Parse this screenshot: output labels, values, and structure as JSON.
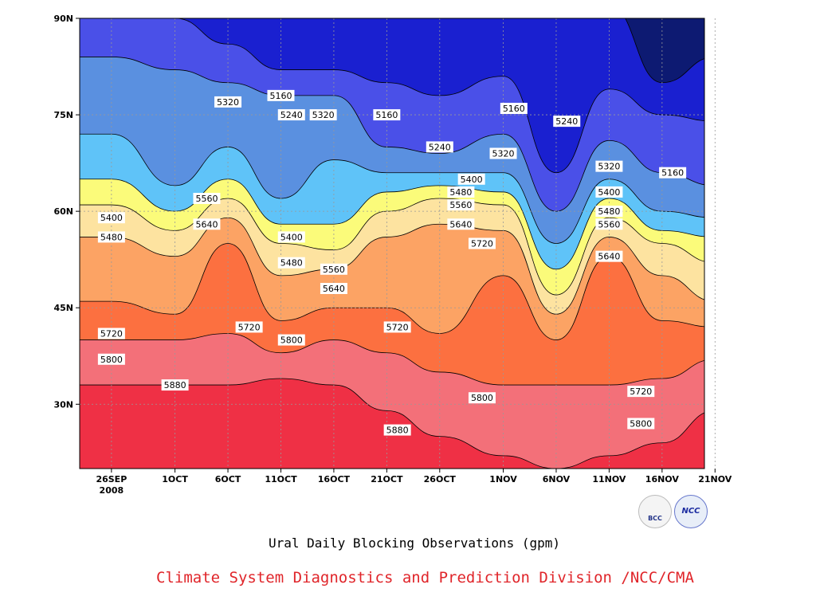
{
  "chart_data": {
    "type": "contour",
    "title": "",
    "xlabel": "",
    "ylabel": "",
    "x_ticks": [
      "26SEP",
      "1OCT",
      "6OCT",
      "11OCT",
      "16OCT",
      "21OCT",
      "26OCT",
      "1NOV",
      "6NOV",
      "11NOV",
      "16NOV",
      "21NOV"
    ],
    "x_year_label": "2008",
    "y_ticks": [
      "30N",
      "45N",
      "60N",
      "75N",
      "90N"
    ],
    "ylim": [
      20,
      90
    ],
    "contour_levels": [
      5160,
      5240,
      5320,
      5400,
      5480,
      5560,
      5640,
      5720,
      5800,
      5880
    ],
    "contour_labels": [
      {
        "value": "5160",
        "date": "11OCT",
        "lat": 78
      },
      {
        "value": "5240",
        "date": "12OCT",
        "lat": 75
      },
      {
        "value": "5320",
        "date": "6OCT",
        "lat": 77
      },
      {
        "value": "5320",
        "date": "15OCT",
        "lat": 75
      },
      {
        "value": "5160",
        "date": "21OCT",
        "lat": 75
      },
      {
        "value": "5160",
        "date": "2NOV",
        "lat": 76
      },
      {
        "value": "5240",
        "date": "7NOV",
        "lat": 74
      },
      {
        "value": "5240",
        "date": "26OCT",
        "lat": 70
      },
      {
        "value": "5320",
        "date": "1NOV",
        "lat": 69
      },
      {
        "value": "5320",
        "date": "11NOV",
        "lat": 67
      },
      {
        "value": "5160",
        "date": "17NOV",
        "lat": 66
      },
      {
        "value": "5400",
        "date": "29OCT",
        "lat": 65
      },
      {
        "value": "5480",
        "date": "28OCT",
        "lat": 63
      },
      {
        "value": "5560",
        "date": "28OCT",
        "lat": 61
      },
      {
        "value": "5640",
        "date": "28OCT",
        "lat": 58
      },
      {
        "value": "5400",
        "date": "11NOV",
        "lat": 63
      },
      {
        "value": "5480",
        "date": "11NOV",
        "lat": 60
      },
      {
        "value": "5560",
        "date": "11NOV",
        "lat": 58
      },
      {
        "value": "5640",
        "date": "11NOV",
        "lat": 53
      },
      {
        "value": "5560",
        "date": "4OCT",
        "lat": 62
      },
      {
        "value": "5640",
        "date": "4OCT",
        "lat": 58
      },
      {
        "value": "5400",
        "date": "26SEP",
        "lat": 59
      },
      {
        "value": "5480",
        "date": "26SEP",
        "lat": 56
      },
      {
        "value": "5400",
        "date": "12OCT",
        "lat": 56
      },
      {
        "value": "5480",
        "date": "12OCT",
        "lat": 52
      },
      {
        "value": "5560",
        "date": "16OCT",
        "lat": 51
      },
      {
        "value": "5640",
        "date": "16OCT",
        "lat": 48
      },
      {
        "value": "5720",
        "date": "30OCT",
        "lat": 55
      },
      {
        "value": "5720",
        "date": "26SEP",
        "lat": 41
      },
      {
        "value": "5720",
        "date": "8OCT",
        "lat": 42
      },
      {
        "value": "5720",
        "date": "22OCT",
        "lat": 42
      },
      {
        "value": "5800",
        "date": "26SEP",
        "lat": 37
      },
      {
        "value": "5800",
        "date": "12OCT",
        "lat": 40
      },
      {
        "value": "5880",
        "date": "1OCT",
        "lat": 33
      },
      {
        "value": "5800",
        "date": "30OCT",
        "lat": 31
      },
      {
        "value": "5880",
        "date": "22OCT",
        "lat": 26
      },
      {
        "value": "5720",
        "date": "14NOV",
        "lat": 32
      },
      {
        "value": "5800",
        "date": "14NOV",
        "lat": 27
      }
    ],
    "fill_colors": [
      "#0d1a72",
      "#1a20d0",
      "#4a50e8",
      "#5a90e0",
      "#5fc3f8",
      "#fbfb7a",
      "#fde3a0",
      "#fca364",
      "#fc7040",
      "#f37079",
      "#ef3045"
    ],
    "grid": true,
    "legend": "none"
  },
  "caption": "Ural Daily Blocking Observations (gpm)",
  "credit": "Climate System Diagnostics and Prediction Division /NCC/CMA",
  "logos": {
    "left_text": "BCC",
    "right_text": "NCC"
  },
  "icons": {
    "left": "bcc-logo-icon",
    "right": "ncc-logo-icon"
  }
}
